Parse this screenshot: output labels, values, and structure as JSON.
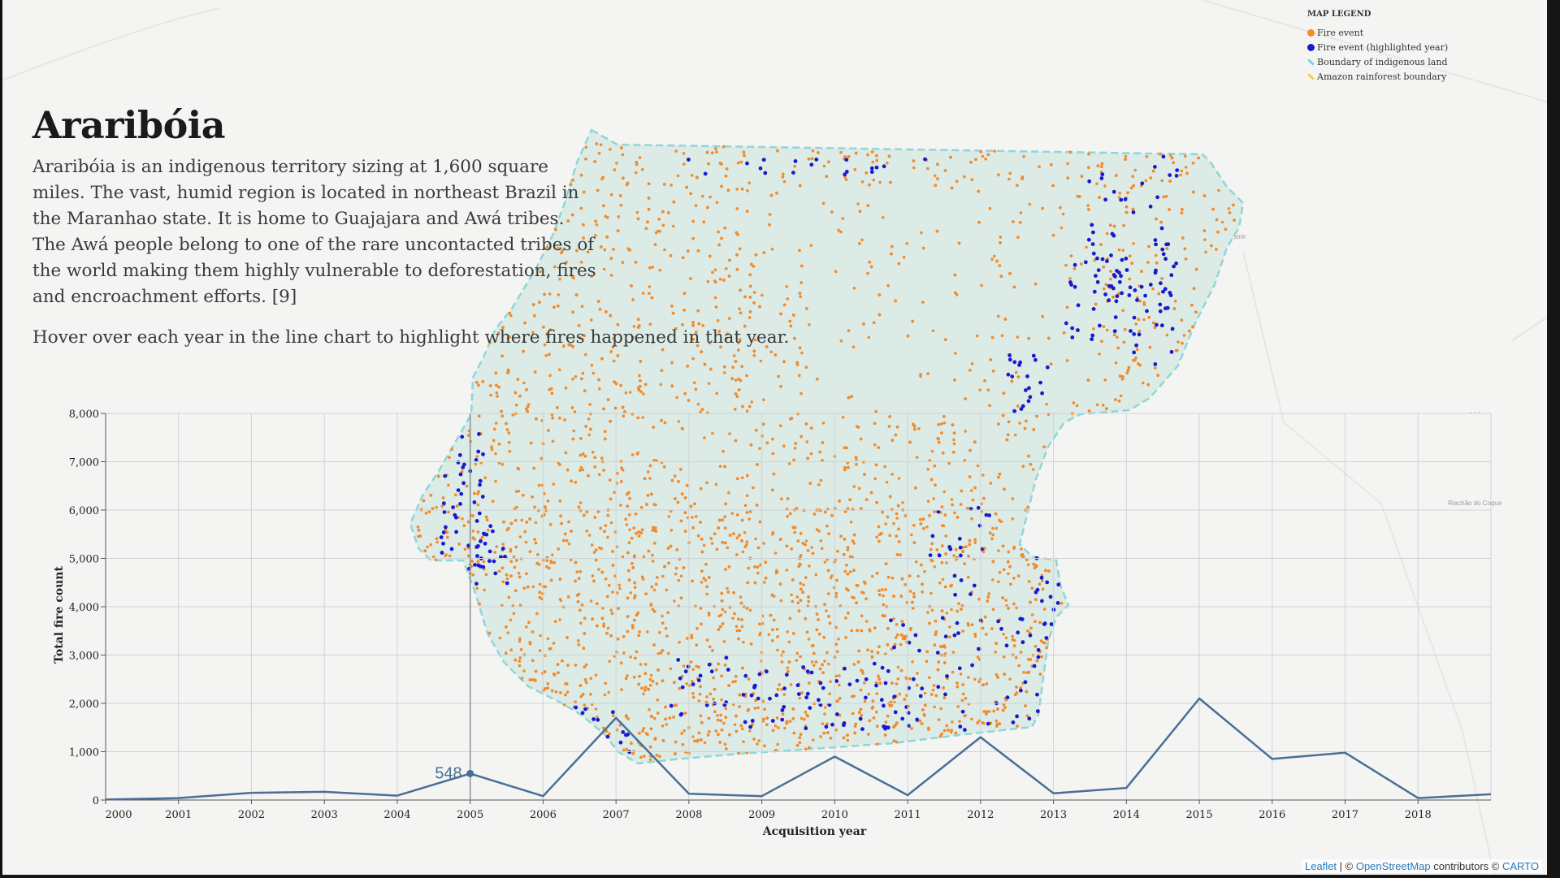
{
  "title": "Araribóia",
  "description": "Araribóia is an indigenous territory sizing at 1,600 square miles. The vast, humid region is located in northeast Brazil in the Maranhao state. It is home to Guajajara and Awá tribes. The Awá people belong to one of the rare uncontacted tribes of the world making them highly vulnerable to deforestation, fires and encroachment efforts. [9]",
  "hint": "Hover over each year in the line chart to highlight where fires happened in that year.",
  "legend": {
    "title": "MAP LEGEND",
    "items": [
      {
        "label": "Fire event",
        "color": "#f28b2c",
        "shape": "dot"
      },
      {
        "label": "Fire event (highlighted year)",
        "color": "#1a1acc",
        "shape": "dot"
      },
      {
        "label": "Boundary of indigenous land",
        "color": "#7fd3d6",
        "shape": "line"
      },
      {
        "label": "Amazon rainforest boundary",
        "color": "#f0d23a",
        "shape": "line"
      }
    ]
  },
  "map_labels": {
    "town_1": "sme",
    "town_2": "Riachão do Coque"
  },
  "attribution": {
    "leaflet": "Leaflet",
    "sep": " | © ",
    "osm": "OpenStreetMap",
    "contrib": " contributors © ",
    "carto": "CARTO"
  },
  "colors": {
    "fire": "#f28b2c",
    "highlight": "#1a1acc",
    "territory_fill": "#dcebe6",
    "territory_border": "#8fd6d8",
    "line": "#4a6e95"
  },
  "chart_data": {
    "type": "line",
    "xlabel": "Acquisition year",
    "ylabel": "Total fire count",
    "ylim": [
      0,
      8000
    ],
    "yticks": [
      0,
      1000,
      2000,
      3000,
      4000,
      5000,
      6000,
      7000,
      8000
    ],
    "xlim": [
      2000,
      2019
    ],
    "x": [
      2000,
      2001,
      2002,
      2003,
      2004,
      2005,
      2006,
      2007,
      2008,
      2009,
      2010,
      2011,
      2012,
      2013,
      2014,
      2015,
      2016,
      2017,
      2018,
      2019
    ],
    "series": [
      {
        "values": [
          10,
          40,
          150,
          170,
          90,
          548,
          80,
          1700,
          130,
          80,
          900,
          100,
          1300,
          140,
          250,
          2100,
          850,
          980,
          40,
          120
        ]
      }
    ],
    "highlighted": {
      "year": 2005,
      "value": 548,
      "label": "548"
    },
    "grid": true
  }
}
